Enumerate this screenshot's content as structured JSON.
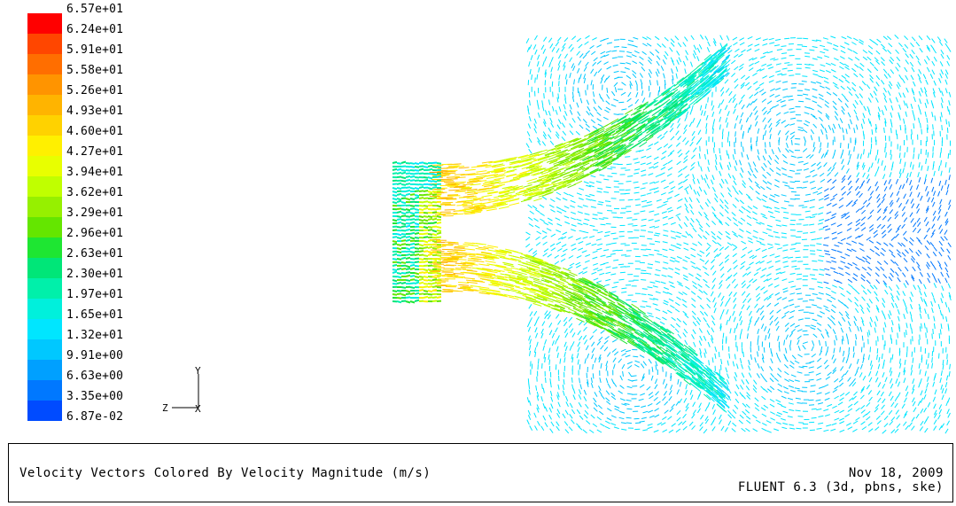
{
  "chart_data": {
    "type": "vector_field",
    "title": "Velocity Vectors Colored By Velocity Magnitude (m/s)",
    "colorbar": {
      "ticks": [
        "6.57e+01",
        "6.24e+01",
        "5.91e+01",
        "5.58e+01",
        "5.26e+01",
        "4.93e+01",
        "4.60e+01",
        "4.27e+01",
        "3.94e+01",
        "3.62e+01",
        "3.29e+01",
        "2.96e+01",
        "2.63e+01",
        "2.30e+01",
        "1.97e+01",
        "1.65e+01",
        "1.32e+01",
        "9.91e+00",
        "6.63e+00",
        "3.35e+00",
        "6.87e-02"
      ],
      "range": [
        0.0687,
        65.7
      ],
      "colors": [
        "#ff0000",
        "#ff4600",
        "#ff6e00",
        "#ff9400",
        "#ffb400",
        "#ffd200",
        "#fff000",
        "#e8ff00",
        "#c0ff00",
        "#96f000",
        "#64e600",
        "#1ee632",
        "#00e678",
        "#00f0aa",
        "#00f0dc",
        "#00e6ff",
        "#00c8ff",
        "#00a0ff",
        "#0078ff",
        "#004bff",
        "#0000ff"
      ]
    },
    "axes_triad": {
      "vertical": "Y",
      "horizontal": "Z",
      "out_of_plane": "X"
    }
  },
  "caption": {
    "date": "Nov 18, 2009",
    "solver": "FLUENT 6.3 (3d, pbns, ske)"
  }
}
